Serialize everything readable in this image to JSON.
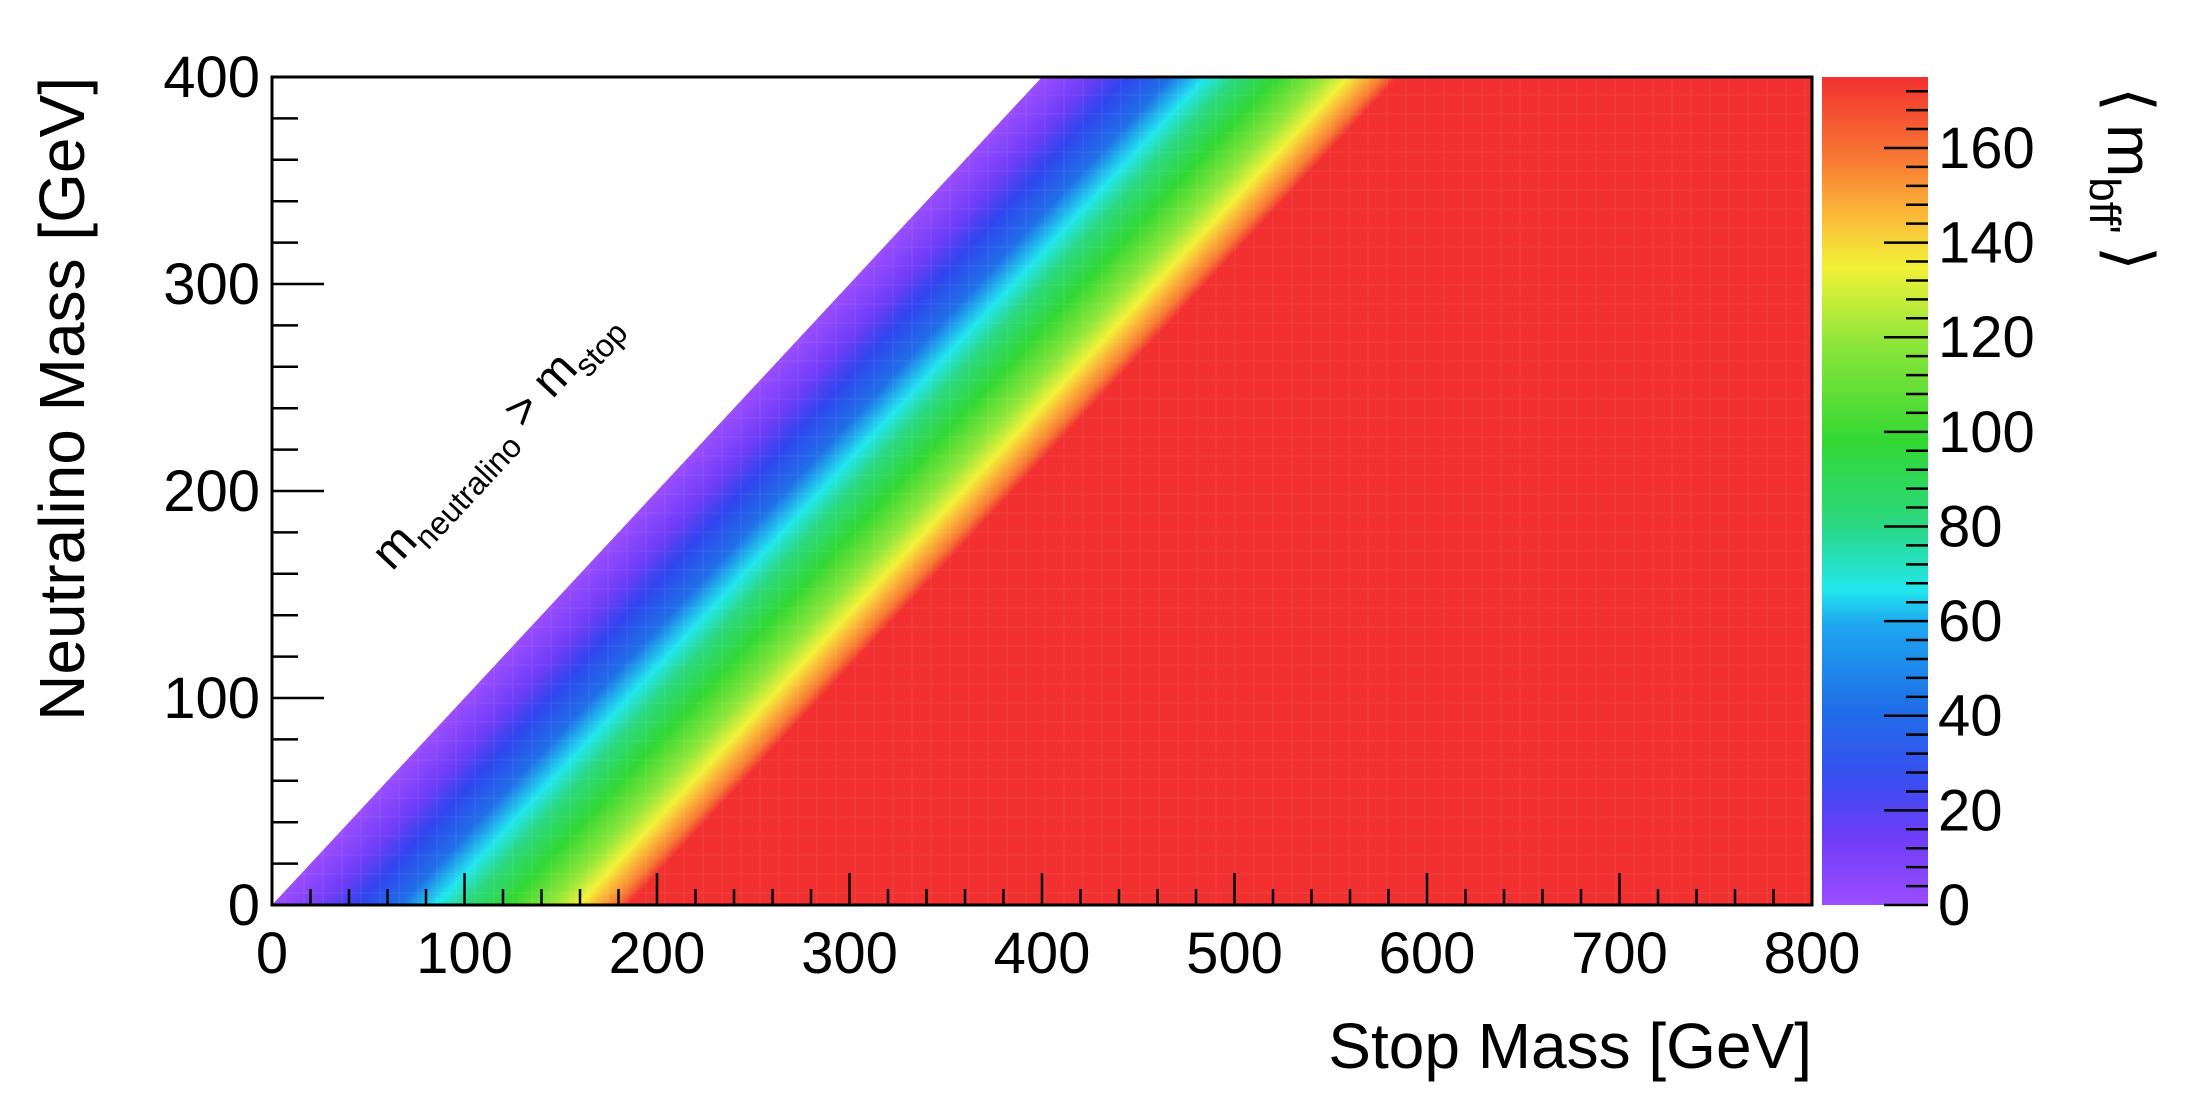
{
  "chart_data": {
    "type": "heatmap",
    "xlabel": "Stop Mass [GeV]",
    "ylabel": "Neutralino Mass [GeV]",
    "xlim": [
      0,
      800
    ],
    "ylim": [
      0,
      400
    ],
    "x_ticks": [
      "0",
      "100",
      "200",
      "300",
      "400",
      "500",
      "600",
      "700",
      "800"
    ],
    "y_ticks": [
      "0",
      "100",
      "200",
      "300",
      "400"
    ],
    "colorbar": {
      "label_main": "m",
      "label_sub": "bff'",
      "label_left_bracket": "⟨",
      "label_right_bracket": "⟩",
      "range": [
        0,
        175
      ],
      "ticks": [
        "0",
        "20",
        "40",
        "60",
        "80",
        "100",
        "120",
        "140",
        "160"
      ],
      "tick_values": [
        0,
        20,
        40,
        60,
        80,
        100,
        120,
        140,
        160
      ]
    },
    "annotation": {
      "main_left": "m",
      "sub_left": "neutralino",
      "operator": " > ",
      "main_right": "m",
      "sub_right": "stop"
    },
    "region_empty": "neutralino mass > stop mass",
    "value_rule": "mean m_bff' rises from ~0 at the kinematic boundary (m_stop = m_neutralino) to saturation (~175) at m_stop - m_neutralino >= ~175 GeV",
    "profile": [
      {
        "delta_m": 0,
        "value": 0
      },
      {
        "delta_m": 50,
        "value": 30
      },
      {
        "delta_m": 90,
        "value": 65
      },
      {
        "delta_m": 130,
        "value": 105
      },
      {
        "delta_m": 165,
        "value": 140
      },
      {
        "delta_m": 175,
        "value": 155
      },
      {
        "delta_m": 185,
        "value": 172
      },
      {
        "delta_m": 800,
        "value": 175
      }
    ]
  }
}
